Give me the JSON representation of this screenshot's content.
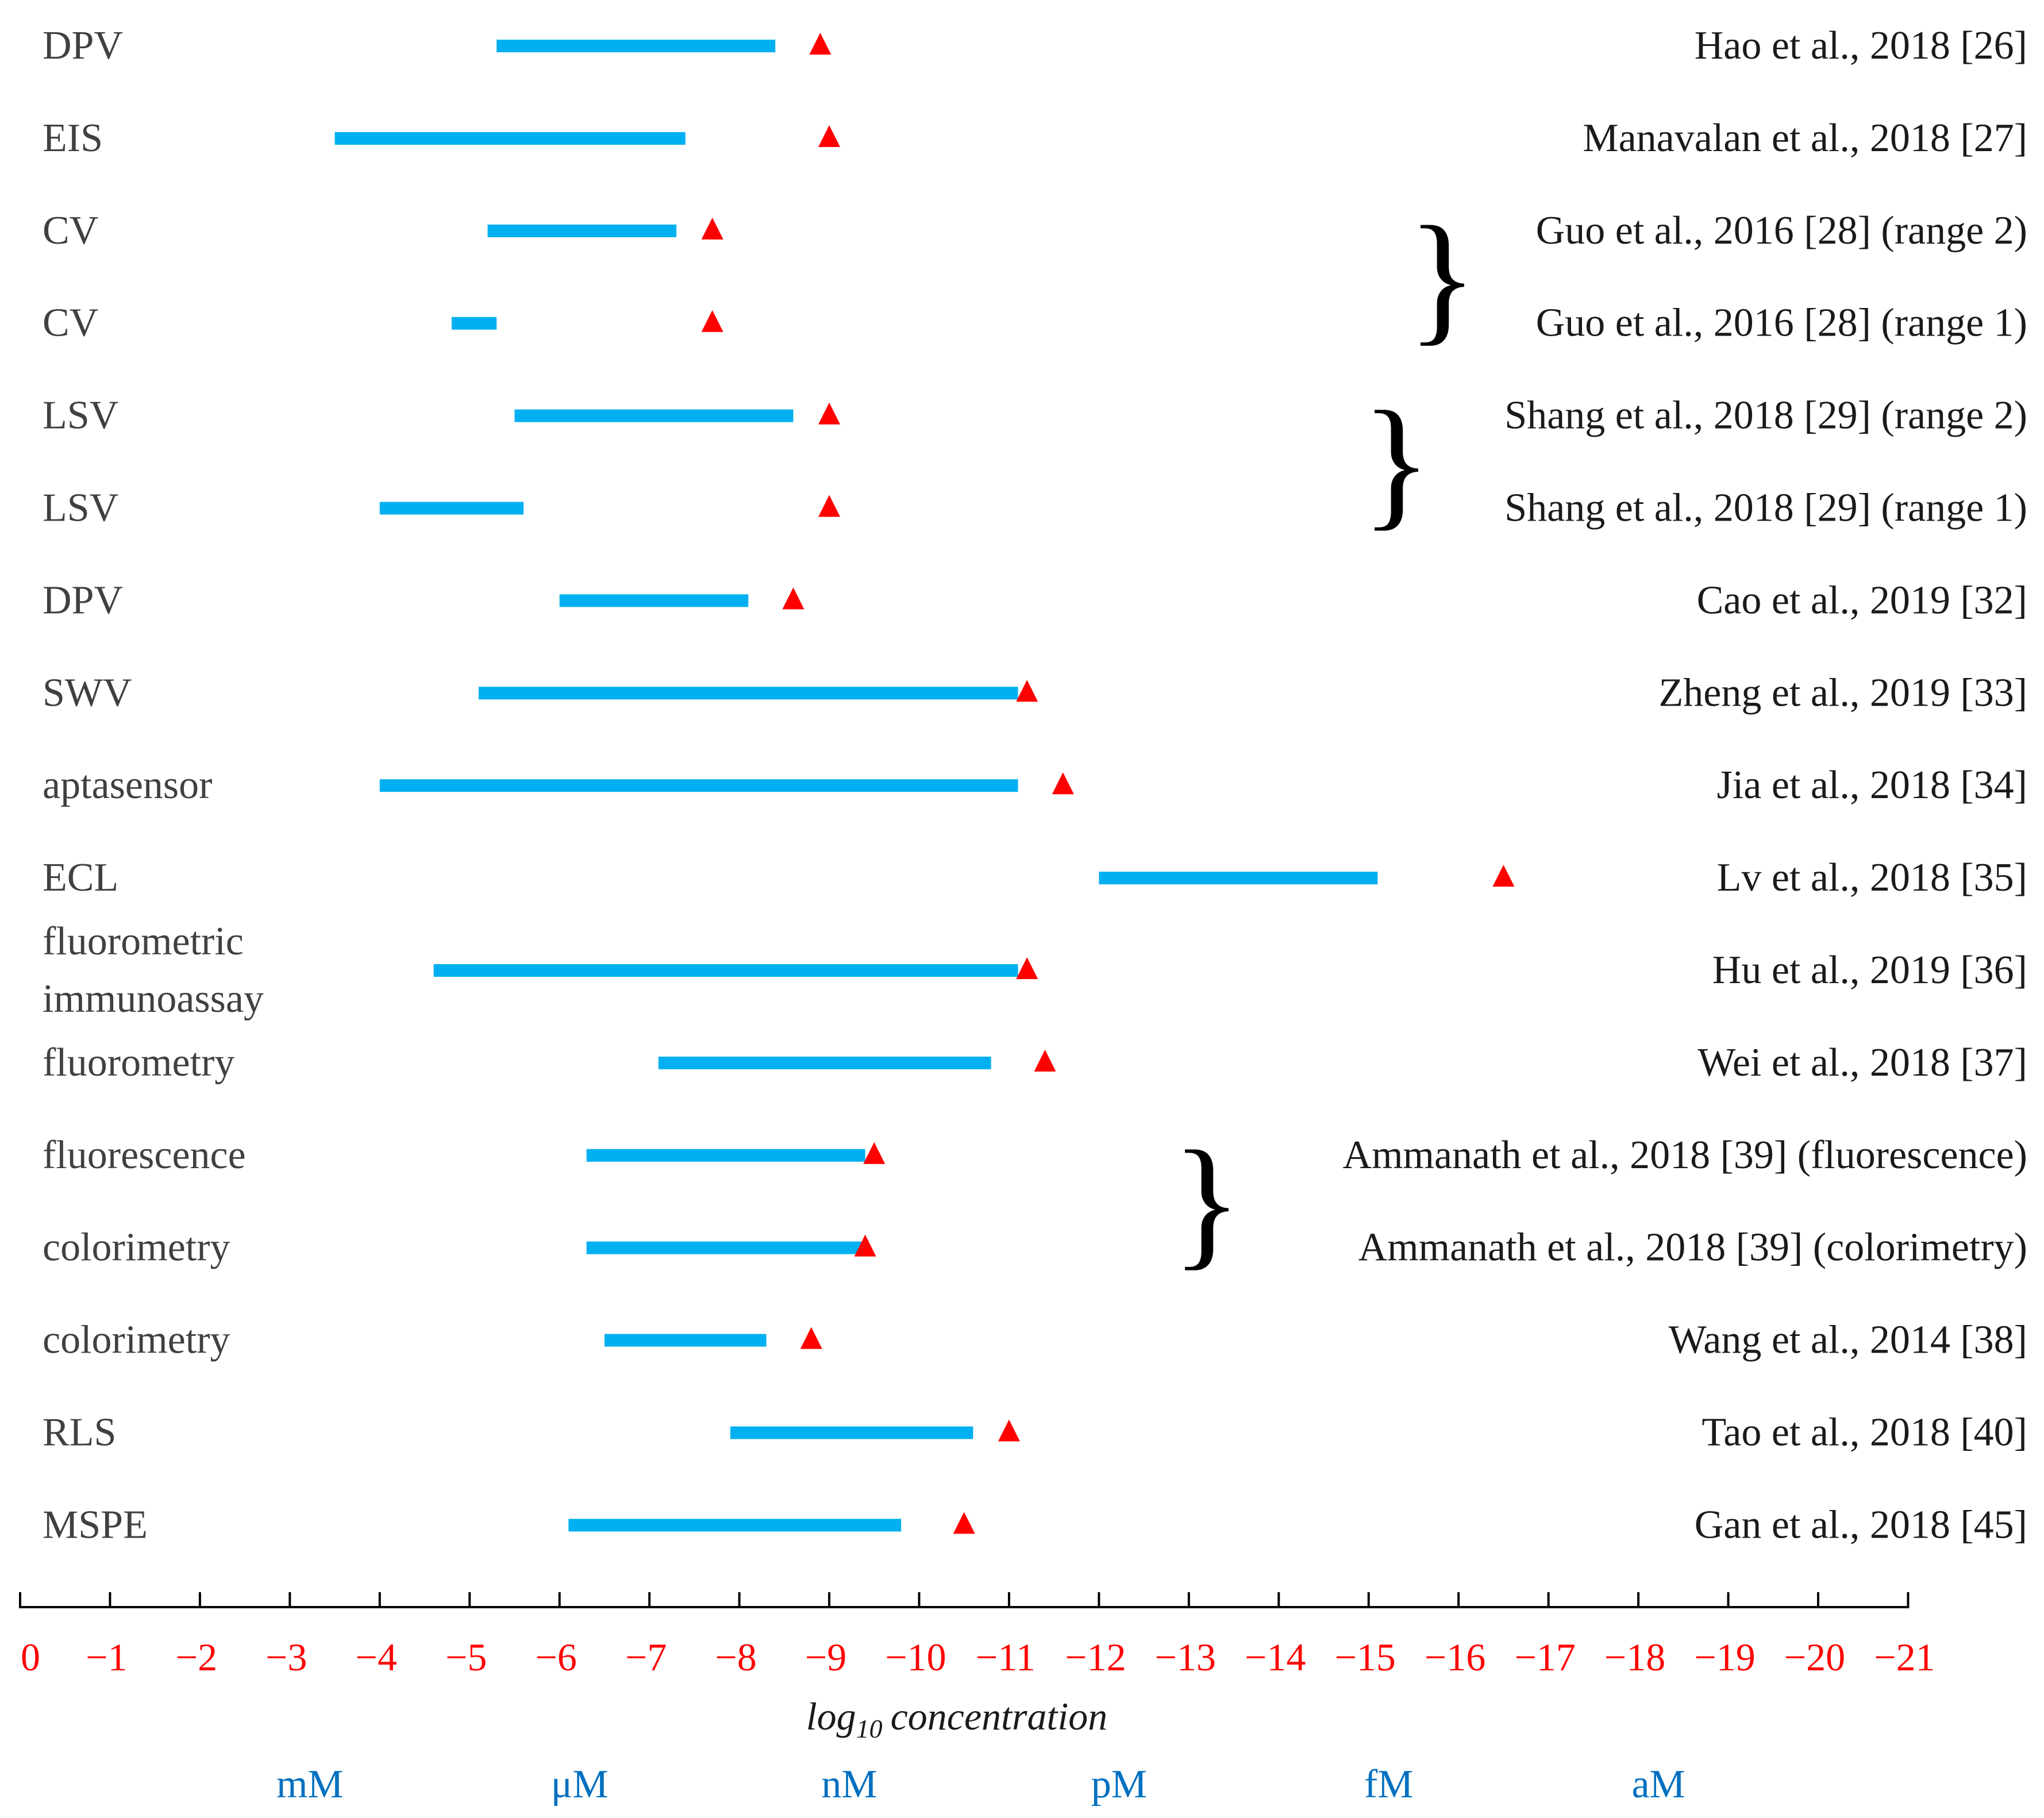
{
  "chart_data": {
    "type": "range-plot",
    "colors": {
      "bar": "#00b0f0",
      "marker": "#ff0000",
      "tick_label": "#ff0000",
      "unit_label": "#0070c0"
    },
    "rows": [
      {
        "method": "DPV",
        "range": [
          -5.3,
          -8.4
        ],
        "lod": -8.9,
        "ref": "Hao et al., 2018 [26]"
      },
      {
        "method": "EIS",
        "range": [
          -3.5,
          -7.4
        ],
        "lod": -9.0,
        "ref": "Manavalan et al., 2018 [27]"
      },
      {
        "method": "CV",
        "range": [
          -5.2,
          -7.3
        ],
        "lod": -7.7,
        "ref": "Guo et al., 2016 [28] (range 2)"
      },
      {
        "method": "CV",
        "range": [
          -4.8,
          -5.3
        ],
        "lod": -7.7,
        "ref": "Guo et al., 2016 [28] (range 1)"
      },
      {
        "method": "LSV",
        "range": [
          -5.5,
          -8.6
        ],
        "lod": -9.0,
        "ref": "Shang et al., 2018 [29]  (range 2)"
      },
      {
        "method": "LSV",
        "range": [
          -4.0,
          -5.6
        ],
        "lod": -9.0,
        "ref": "Shang et al., 2018 [29]  (range 1)"
      },
      {
        "method": "DPV",
        "range": [
          -6.0,
          -8.1
        ],
        "lod": -8.6,
        "ref": "Cao et al., 2019 [32]"
      },
      {
        "method": "SWV",
        "range": [
          -5.1,
          -11.1
        ],
        "lod": -11.2,
        "ref": "Zheng et al., 2019 [33]"
      },
      {
        "method": "aptasensor",
        "range": [
          -4.0,
          -11.1
        ],
        "lod": -11.6,
        "ref": "Jia et al., 2018 [34]"
      },
      {
        "method": "ECL",
        "range": [
          -12.0,
          -15.1
        ],
        "lod": -16.5,
        "ref": "Lv et al., 2018 [35]"
      },
      {
        "method": "fluorometric immunoassay",
        "method_lines": [
          "fluorometric",
          "immunoassay"
        ],
        "range": [
          -4.6,
          -11.1
        ],
        "lod": -11.2,
        "ref": "Hu et al., 2019 [36]"
      },
      {
        "method": "fluorometry",
        "range": [
          -7.1,
          -10.8
        ],
        "lod": -11.4,
        "ref": "Wei et al., 2018 [37]"
      },
      {
        "method": "fluorescence",
        "range": [
          -6.3,
          -9.4
        ],
        "lod": -9.5,
        "ref": "Ammanath et al., 2018 [39] (fluorescence)"
      },
      {
        "method": "colorimetry",
        "range": [
          -6.3,
          -9.4
        ],
        "lod": -9.4,
        "ref": "Ammanath et al., 2018 [39] (colorimetry)"
      },
      {
        "method": "colorimetry",
        "range": [
          -6.5,
          -8.3
        ],
        "lod": -8.8,
        "ref": "Wang et al., 2014 [38]"
      },
      {
        "method": "RLS",
        "range": [
          -7.9,
          -10.6
        ],
        "lod": -11.0,
        "ref": "Tao et al., 2018 [40]"
      },
      {
        "method": "MSPE",
        "range": [
          -6.1,
          -9.8
        ],
        "lod": -10.5,
        "ref": "Gan et al., 2018 [45]"
      }
    ],
    "braces": [
      [
        2,
        3
      ],
      [
        4,
        5
      ],
      [
        12,
        13
      ]
    ],
    "x_ticks": [
      0,
      -1,
      -2,
      -3,
      -4,
      -5,
      -6,
      -7,
      -8,
      -9,
      -10,
      -11,
      -12,
      -13,
      -14,
      -15,
      -16,
      -17,
      -18,
      -19,
      -20,
      -21
    ],
    "x_tick_labels": [
      "0",
      "−1",
      "−2",
      "−3",
      "−4",
      "−5",
      "−6",
      "−7",
      "−8",
      "−9",
      "−10",
      "−11",
      "−12",
      "−13",
      "−14",
      "−15",
      "−16",
      "−17",
      "−18",
      "−19",
      "−20",
      "−21"
    ],
    "xlim": [
      0,
      -21
    ],
    "xlabel_base": "log",
    "xlabel_sub": "10",
    "xlabel_rest": "concentration",
    "units": [
      {
        "label": "mM",
        "at": -3
      },
      {
        "label": "μM",
        "at": -6
      },
      {
        "label": "nM",
        "at": -9
      },
      {
        "label": "pM",
        "at": -12
      },
      {
        "label": "fM",
        "at": -15
      },
      {
        "label": "aM",
        "at": -18
      }
    ]
  }
}
